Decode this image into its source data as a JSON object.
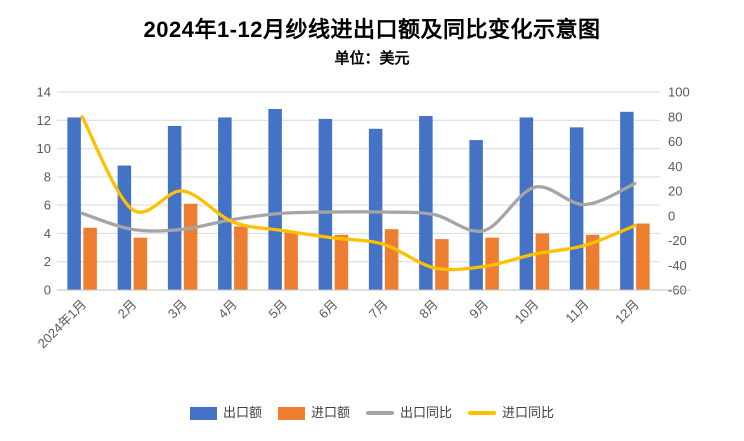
{
  "chart_data": {
    "type": "combo-bar-line",
    "title": "2024年1-12月纱线进出口额及同比变化示意图",
    "subtitle": "单位：美元",
    "categories": [
      "2024年1月",
      "2月",
      "3月",
      "4月",
      "5月",
      "6月",
      "7月",
      "8月",
      "9月",
      "10月",
      "11月",
      "12月"
    ],
    "series": [
      {
        "name": "出口额",
        "kind": "bar",
        "axis": "left",
        "color": "#4472C4",
        "values": [
          12.2,
          8.8,
          11.6,
          12.2,
          12.8,
          12.1,
          11.4,
          12.3,
          10.6,
          12.2,
          11.5,
          12.6
        ]
      },
      {
        "name": "进口额",
        "kind": "bar",
        "axis": "left",
        "color": "#ED7D31",
        "values": [
          4.4,
          3.7,
          6.1,
          4.5,
          4.1,
          3.9,
          4.3,
          3.6,
          3.7,
          4.0,
          3.9,
          4.7
        ]
      },
      {
        "name": "出口同比",
        "kind": "line",
        "axis": "right",
        "color": "#A5A5A5",
        "values": [
          2,
          -11,
          -11,
          -3,
          2,
          3,
          3,
          1,
          -12,
          23,
          9,
          26
        ]
      },
      {
        "name": "进口同比",
        "kind": "line",
        "axis": "right",
        "color": "#FFC000",
        "values": [
          80,
          5,
          20,
          -5,
          -12,
          -18,
          -23,
          -42,
          -41,
          -31,
          -24,
          -8
        ]
      }
    ],
    "left_axis": {
      "min": 0,
      "max": 14,
      "step": 2
    },
    "right_axis": {
      "min": -60,
      "max": 100,
      "step": 20
    },
    "grid": true,
    "legend_position": "bottom"
  }
}
